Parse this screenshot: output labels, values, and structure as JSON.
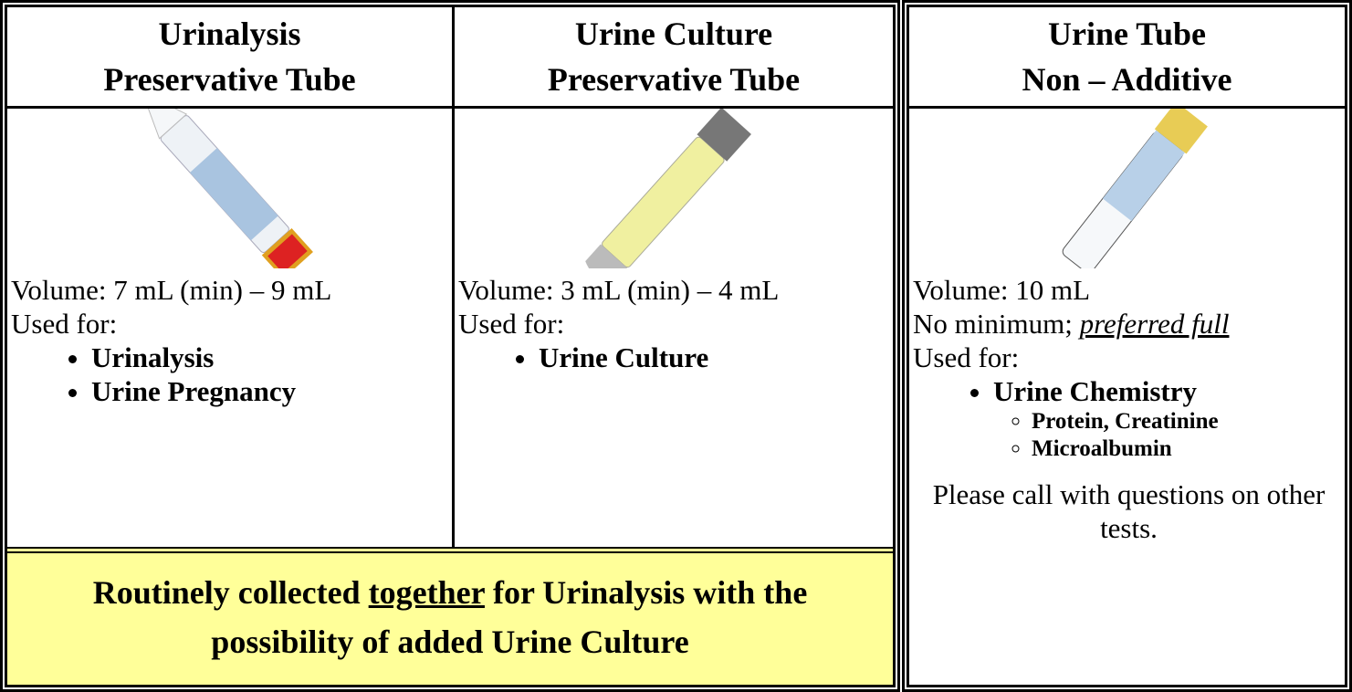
{
  "columns": [
    {
      "title": [
        "Urinalysis",
        "Preservative Tube"
      ],
      "volume": "Volume:  7 mL (min) – 9 mL",
      "used_for": "Used for:",
      "tests": [
        "Urinalysis",
        "Urine Pregnancy"
      ]
    },
    {
      "title": [
        "Urine Culture",
        "Preservative Tube"
      ],
      "volume": "Volume:  3 mL (min) – 4 mL",
      "used_for": "Used for:",
      "tests": [
        "Urine Culture"
      ]
    },
    {
      "title": [
        "Urine Tube",
        "Non – Additive"
      ],
      "volume": "Volume: 10 mL",
      "note": "No minimum; ",
      "note_emphasis": "preferred full",
      "used_for": "Used for:",
      "tests": [
        "Urine Chemistry"
      ],
      "subtests": [
        "Protein, Creatinine",
        "Microalbumin"
      ],
      "footer": "Please call with questions on other tests."
    }
  ],
  "banner": {
    "before": "Routinely collected ",
    "emphasis": "together",
    "after": " for Urinalysis with the possibility of added Urine Culture"
  }
}
